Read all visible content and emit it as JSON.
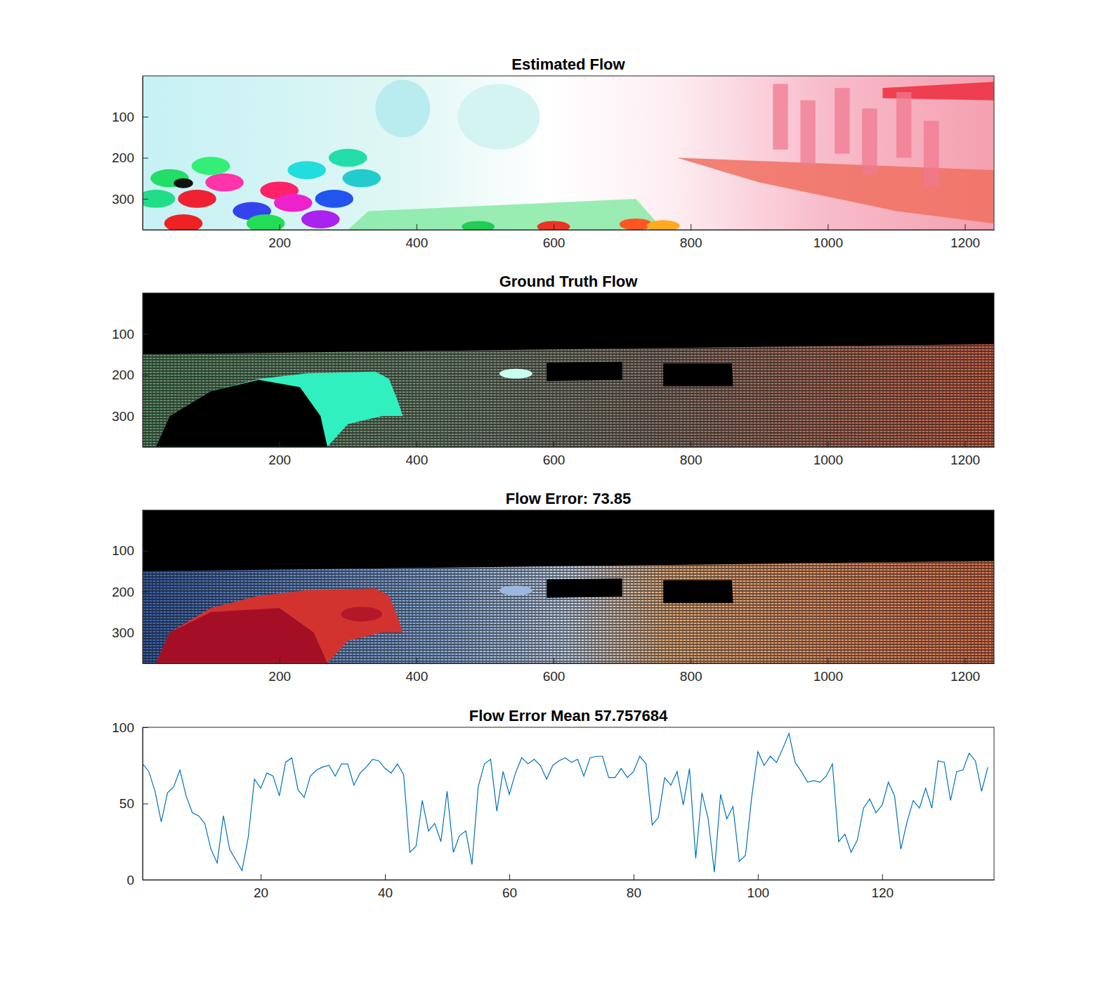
{
  "chart_data": [
    {
      "type": "image",
      "title": "Estimated Flow",
      "xlim": [
        0.5,
        1242.5
      ],
      "ylim": [
        0.5,
        375.5
      ],
      "xticks": [
        200,
        400,
        600,
        800,
        1000,
        1200
      ],
      "yticks": [
        100,
        200,
        300
      ]
    },
    {
      "type": "image",
      "title": "Ground Truth Flow",
      "xlim": [
        0.5,
        1242.5
      ],
      "ylim": [
        0.5,
        375.5
      ],
      "xticks": [
        200,
        400,
        600,
        800,
        1000,
        1200
      ],
      "yticks": [
        100,
        200,
        300
      ]
    },
    {
      "type": "image",
      "title": "Flow Error: 73.85",
      "xlim": [
        0.5,
        1242.5
      ],
      "ylim": [
        0.5,
        375.5
      ],
      "xticks": [
        200,
        400,
        600,
        800,
        1000,
        1200
      ],
      "yticks": [
        100,
        200,
        300
      ]
    },
    {
      "type": "line",
      "title": "Flow Error Mean 57.757684",
      "xlim": [
        1,
        138
      ],
      "ylim": [
        0,
        100
      ],
      "xticks": [
        20,
        40,
        60,
        80,
        100,
        120
      ],
      "yticks": [
        0,
        50,
        100
      ],
      "x": [
        1,
        2,
        3,
        4,
        5,
        6,
        7,
        8,
        9,
        10,
        11,
        12,
        13,
        14,
        15,
        16,
        17,
        18,
        19,
        20,
        21,
        22,
        23,
        24,
        25,
        26,
        27,
        28,
        29,
        30,
        31,
        32,
        33,
        34,
        35,
        36,
        37,
        38,
        39,
        40,
        41,
        42,
        43,
        44,
        45,
        46,
        47,
        48,
        49,
        50,
        51,
        52,
        53,
        54,
        55,
        56,
        57,
        58,
        59,
        60,
        61,
        62,
        63,
        64,
        65,
        66,
        67,
        68,
        69,
        70,
        71,
        72,
        73,
        74,
        75,
        76,
        77,
        78,
        79,
        80,
        81,
        82,
        83,
        84,
        85,
        86,
        87,
        88,
        89,
        90,
        91,
        92,
        93,
        94,
        95,
        96,
        97,
        98,
        99,
        100,
        101,
        102,
        103,
        104,
        105,
        106,
        107,
        108,
        109,
        110,
        111,
        112,
        113,
        114,
        115,
        116,
        117,
        118,
        119,
        120,
        121,
        122,
        123,
        124,
        125,
        126,
        127,
        128,
        129,
        130,
        131,
        132,
        133,
        134,
        135,
        136,
        137
      ],
      "series": [
        {
          "color": "#0072bd",
          "values": [
            76,
            71,
            58,
            38,
            57,
            61,
            72,
            55,
            44,
            42,
            37,
            20,
            11,
            42,
            20,
            13,
            6,
            28,
            66,
            60,
            70,
            68,
            55,
            77,
            80,
            59,
            54,
            68,
            72,
            74,
            75,
            68,
            76,
            76,
            62,
            70,
            74,
            79,
            78,
            73,
            70,
            76,
            69,
            18,
            22,
            52,
            32,
            37,
            25,
            58,
            18,
            29,
            32,
            10,
            61,
            76,
            79,
            45,
            71,
            56,
            70,
            80,
            76,
            79,
            75,
            66,
            75,
            78,
            80,
            77,
            79,
            68,
            80,
            81,
            81,
            67,
            67,
            73,
            67,
            71,
            81,
            76,
            36,
            41,
            67,
            62,
            71,
            49,
            73,
            14,
            57,
            40,
            5,
            56,
            40,
            48,
            12,
            16,
            54,
            84,
            75,
            81,
            77,
            86,
            96,
            77,
            71,
            64,
            65,
            64,
            68,
            76,
            25,
            30,
            18,
            26,
            47,
            53,
            44,
            49,
            64,
            55,
            20,
            38,
            52,
            47,
            60,
            47,
            78,
            77,
            52,
            71,
            72,
            83,
            78,
            58,
            73.85
          ]
        }
      ]
    }
  ]
}
